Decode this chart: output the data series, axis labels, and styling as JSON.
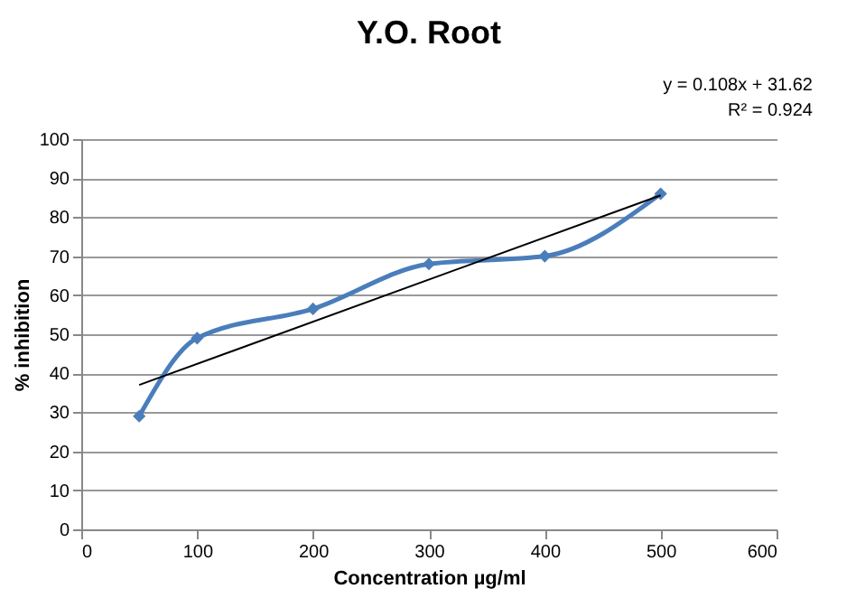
{
  "chart_data": {
    "type": "line",
    "title": "Y.O. Root",
    "xlabel": "Concentration µg/ml",
    "ylabel": "% inhibition",
    "annotations": [
      "y = 0.108x + 31.62",
      "R² = 0.924"
    ],
    "x": [
      50,
      100,
      200,
      300,
      400,
      500
    ],
    "series": [
      {
        "color": "#4a7ebb",
        "values": [
          29,
          49,
          56.5,
          68,
          70,
          86
        ],
        "marker": "diamond"
      },
      {
        "type": "line",
        "color": "#000000",
        "x": [
          50,
          500
        ],
        "values": [
          37,
          85.6
        ],
        "marker": "none"
      }
    ],
    "xlim": [
      0,
      600
    ],
    "xticks": [
      0,
      100,
      200,
      300,
      400,
      500,
      600
    ],
    "ylim": [
      0,
      100
    ],
    "yticks": [
      0,
      10,
      20,
      30,
      40,
      50,
      60,
      70,
      80,
      90,
      100
    ],
    "grid": "y"
  }
}
